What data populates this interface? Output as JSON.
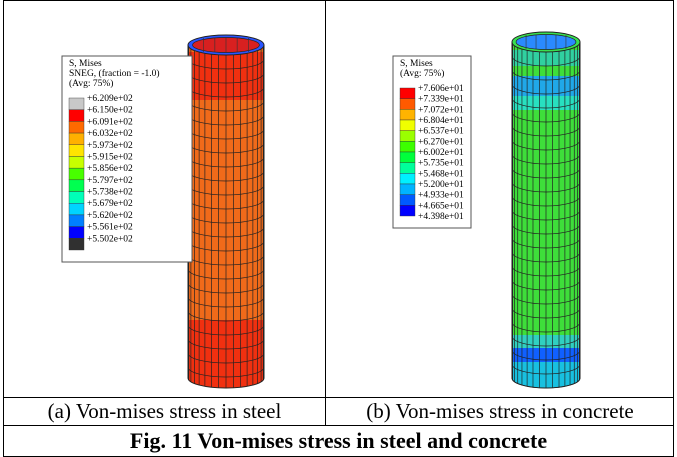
{
  "panels": [
    {
      "legend_title": [
        "S, Mises",
        "SNEG, (fraction = -1.0)",
        "(Avg: 75%)"
      ],
      "levels": [
        "+6.209e+02",
        "+6.150e+02",
        "+6.091e+02",
        "+6.032e+02",
        "+5.973e+02",
        "+5.915e+02",
        "+5.856e+02",
        "+5.797e+02",
        "+5.738e+02",
        "+5.679e+02",
        "+5.620e+02",
        "+5.561e+02",
        "+5.502e+02"
      ],
      "colors": [
        "#c8c8c8",
        "#ff0000",
        "#ff6a00",
        "#ffb000",
        "#ffe400",
        "#c8ff00",
        "#48ff00",
        "#00ff50",
        "#00ffb8",
        "#00d4ff",
        "#0080ff",
        "#0000ff",
        "#303030"
      ],
      "caption": "(a) Von-mises stress in steel"
    },
    {
      "legend_title": [
        "S, Mises",
        "(Avg: 75%)"
      ],
      "levels": [
        "+7.606e+01",
        "+7.339e+01",
        "+7.072e+01",
        "+6.804e+01",
        "+6.537e+01",
        "+6.270e+01",
        "+6.002e+01",
        "+5.735e+01",
        "+5.468e+01",
        "+5.200e+01",
        "+4.933e+01",
        "+4.665e+01",
        "+4.398e+01"
      ],
      "colors": [
        "#ff0000",
        "#ff5a00",
        "#ffb400",
        "#f0ff00",
        "#9aff00",
        "#3cff00",
        "#00ff3c",
        "#00ff9a",
        "#00f0ff",
        "#00b4ff",
        "#005aff",
        "#0000ff"
      ],
      "caption": "(b) Von-mises stress in concrete"
    }
  ],
  "figure_caption": "Fig. 11 Von-mises stress in steel and concrete"
}
